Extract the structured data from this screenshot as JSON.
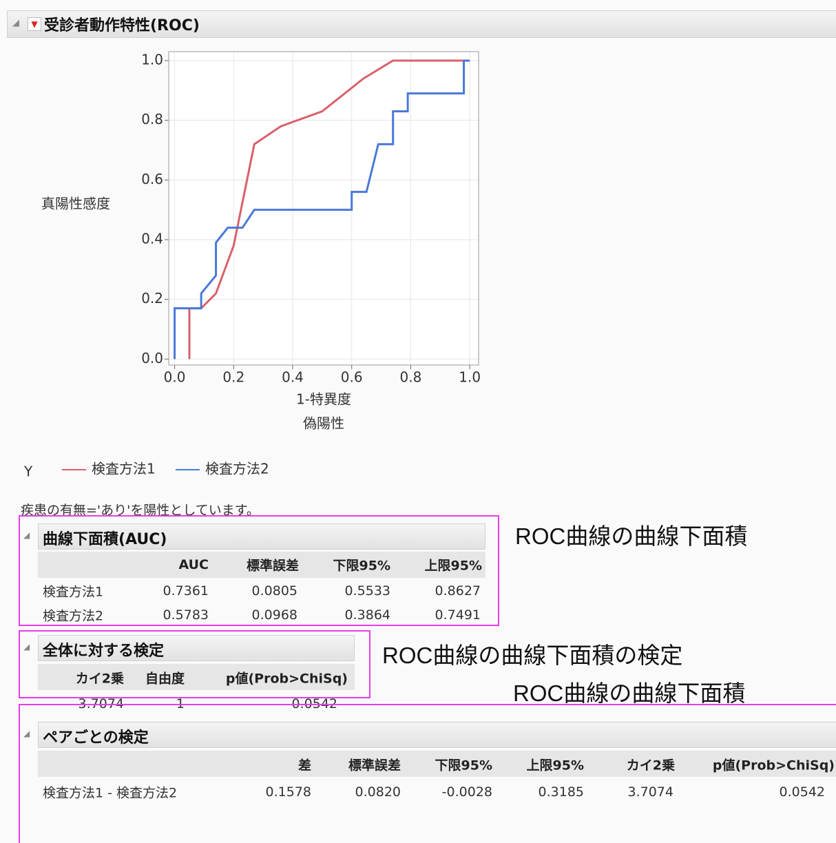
{
  "header": {
    "title": "受診者動作特性(ROC)"
  },
  "chart_data": {
    "type": "line",
    "y_label": "真陽性感度",
    "x_label": "1-特異度",
    "x_label2": "偽陽性",
    "legend_title": "Y",
    "series": [
      {
        "name": "検査方法1",
        "color": "#d9606a",
        "x": [
          0.05,
          0.05,
          0.09,
          0.14,
          0.2,
          0.27,
          0.36,
          0.5,
          0.64,
          0.74,
          1.0
        ],
        "values": [
          0,
          0.17,
          0.17,
          0.22,
          0.38,
          0.72,
          0.78,
          0.83,
          0.94,
          1.0,
          1.0
        ]
      },
      {
        "name": "検査方法2",
        "color": "#4a78d8",
        "x": [
          0,
          0,
          0.09,
          0.09,
          0.14,
          0.14,
          0.18,
          0.23,
          0.27,
          0.6,
          0.6,
          0.65,
          0.69,
          0.74,
          0.74,
          0.79,
          0.79,
          0.98,
          0.98,
          1.0
        ],
        "values": [
          0,
          0.17,
          0.17,
          0.22,
          0.28,
          0.39,
          0.44,
          0.44,
          0.5,
          0.5,
          0.56,
          0.56,
          0.72,
          0.72,
          0.83,
          0.83,
          0.89,
          0.89,
          1.0,
          1.0
        ]
      }
    ],
    "xlim": [
      -0.02,
      1.03
    ],
    "ylim": [
      -0.02,
      1.03
    ],
    "xticks": [
      {
        "value": 0,
        "label": "0.0"
      },
      0.2,
      0.4,
      0.6,
      0.8,
      {
        "value": 1,
        "label": "1.0"
      }
    ],
    "yticks": [
      {
        "value": 0,
        "label": "0.0"
      },
      0.2,
      0.4,
      0.6,
      0.8,
      {
        "value": 1,
        "label": "1.0"
      }
    ],
    "grid": true
  },
  "note": "疾患の有無='あり'を陽性としています。",
  "auc_table": {
    "title": "曲線下面積(AUC)",
    "columns": [
      "AUC",
      "標準誤差",
      "下限95%",
      "上限95%"
    ],
    "rows": [
      {
        "name": "検査方法1",
        "cells": [
          "0.7361",
          "0.0805",
          "0.5533",
          "0.8627"
        ]
      },
      {
        "name": "検査方法2",
        "cells": [
          "0.5783",
          "0.0968",
          "0.3864",
          "0.7491"
        ]
      }
    ]
  },
  "overall_test": {
    "title": "全体に対する検定",
    "columns": [
      "カイ2乗",
      "自由度",
      "p値(Prob>ChiSq)"
    ],
    "rows": [
      {
        "cells": [
          "3.7074",
          "1",
          "0.0542"
        ]
      }
    ]
  },
  "pairwise_test": {
    "title": "ペアごとの検定",
    "columns": [
      "差",
      "標準誤差",
      "下限95%",
      "上限95%",
      "カイ2乗",
      "p値(Prob>ChiSq)"
    ],
    "rows": [
      {
        "name": "検査方法1 - 検査方法2",
        "cells": [
          "0.1578",
          "0.0820",
          "-0.0028",
          "0.3185",
          "3.7074",
          "0.0542"
        ]
      }
    ]
  },
  "annotations": [
    "ROC曲線の曲線下面積",
    "ROC曲線の曲線下面積の検定",
    "ROC曲線の曲線下面積"
  ]
}
